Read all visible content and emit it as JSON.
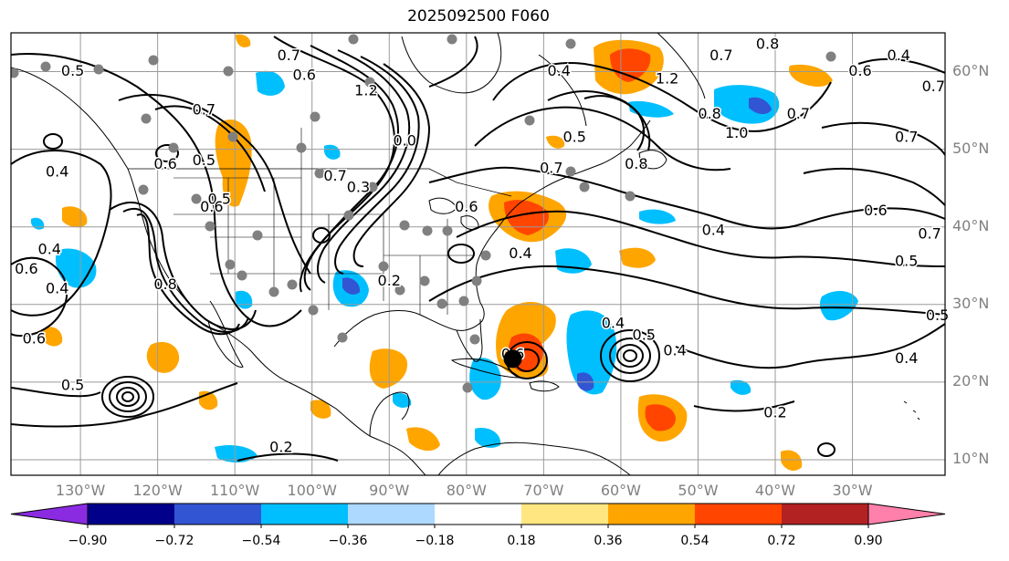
{
  "title": "2025092500 F060",
  "map": {
    "lon_min": -139,
    "lon_max": -18,
    "lat_min": 8,
    "lat_max": 65,
    "lat_labels": [
      {
        "lat": 60,
        "text": "60°N"
      },
      {
        "lat": 50,
        "text": "50°N"
      },
      {
        "lat": 40,
        "text": "40°N"
      },
      {
        "lat": 30,
        "text": "30°N"
      },
      {
        "lat": 20,
        "text": "20°N"
      },
      {
        "lat": 10,
        "text": "10°N"
      }
    ],
    "lon_labels": [
      {
        "lon": -130,
        "text": "130°W"
      },
      {
        "lon": -120,
        "text": "120°W"
      },
      {
        "lon": -110,
        "text": "110°W"
      },
      {
        "lon": -100,
        "text": "100°W"
      },
      {
        "lon": -90,
        "text": "90°W"
      },
      {
        "lon": -80,
        "text": "80°W"
      },
      {
        "lon": -70,
        "text": "70°W"
      },
      {
        "lon": -60,
        "text": "60°W"
      },
      {
        "lon": -50,
        "text": "50°W"
      },
      {
        "lon": -40,
        "text": "40°W"
      },
      {
        "lon": -30,
        "text": "30°W"
      }
    ],
    "contour_labels": [
      {
        "lon": -131,
        "lat": 60,
        "text": "0.5"
      },
      {
        "lon": -103,
        "lat": 62,
        "text": "0.7"
      },
      {
        "lon": -101,
        "lat": 59.5,
        "text": "0.6"
      },
      {
        "lon": -133,
        "lat": 47,
        "text": "0.4"
      },
      {
        "lon": -119,
        "lat": 48,
        "text": "0.6"
      },
      {
        "lon": -114,
        "lat": 48.5,
        "text": "0.5"
      },
      {
        "lon": -112,
        "lat": 43.5,
        "text": "0.5"
      },
      {
        "lon": -134,
        "lat": 37,
        "text": "0.4"
      },
      {
        "lon": -137,
        "lat": 34.5,
        "text": "0.6"
      },
      {
        "lon": -133,
        "lat": 32,
        "text": "0.4"
      },
      {
        "lon": -136,
        "lat": 25.5,
        "text": "0.6"
      },
      {
        "lon": -131,
        "lat": 19.5,
        "text": "0.5"
      },
      {
        "lon": -114,
        "lat": 55,
        "text": "0.7"
      },
      {
        "lon": -93,
        "lat": 57.5,
        "text": "1.2"
      },
      {
        "lon": -88,
        "lat": 51,
        "text": "0.0"
      },
      {
        "lon": -97,
        "lat": 46.5,
        "text": "0.7"
      },
      {
        "lon": -94,
        "lat": 45,
        "text": "0.3"
      },
      {
        "lon": -80,
        "lat": 42.5,
        "text": "0.6"
      },
      {
        "lon": -90,
        "lat": 33,
        "text": "0.2"
      },
      {
        "lon": -73,
        "lat": 36.5,
        "text": "0.4"
      },
      {
        "lon": -68,
        "lat": 60,
        "text": "0.4"
      },
      {
        "lon": -54,
        "lat": 59,
        "text": "1.2"
      },
      {
        "lon": -66,
        "lat": 51.5,
        "text": "0.5"
      },
      {
        "lon": -69,
        "lat": 47.5,
        "text": "0.7"
      },
      {
        "lon": -58,
        "lat": 48,
        "text": "0.8"
      },
      {
        "lon": -48.5,
        "lat": 54.5,
        "text": "0.8"
      },
      {
        "lon": -45,
        "lat": 52,
        "text": "1.0"
      },
      {
        "lon": -47,
        "lat": 62,
        "text": "0.7"
      },
      {
        "lon": -41,
        "lat": 63.5,
        "text": "0.8"
      },
      {
        "lon": -37,
        "lat": 54.5,
        "text": "0.7"
      },
      {
        "lon": -24,
        "lat": 62,
        "text": "0.4"
      },
      {
        "lon": -29,
        "lat": 60,
        "text": "0.6"
      },
      {
        "lon": -19.5,
        "lat": 58,
        "text": "0.7"
      },
      {
        "lon": -23,
        "lat": 51.5,
        "text": "0.7"
      },
      {
        "lon": -48,
        "lat": 39.5,
        "text": "0.4"
      },
      {
        "lon": -27,
        "lat": 42,
        "text": "0.6"
      },
      {
        "lon": -20,
        "lat": 39,
        "text": "0.7"
      },
      {
        "lon": -23,
        "lat": 35.5,
        "text": "0.5"
      },
      {
        "lon": -19,
        "lat": 28.5,
        "text": "0.5"
      },
      {
        "lon": -23,
        "lat": 23,
        "text": "0.4"
      },
      {
        "lon": -61,
        "lat": 27.5,
        "text": "0.4"
      },
      {
        "lon": -57,
        "lat": 26,
        "text": "0.5"
      },
      {
        "lon": -53,
        "lat": 24,
        "text": "0.4"
      },
      {
        "lon": -74,
        "lat": 23.5,
        "text": "0.6"
      },
      {
        "lon": -40,
        "lat": 16,
        "text": "0.2"
      },
      {
        "lon": -104,
        "lat": 11.5,
        "text": "0.2"
      },
      {
        "lon": -119,
        "lat": 32.5,
        "text": "0.8"
      },
      {
        "lon": -113,
        "lat": 42.5,
        "text": "0.6"
      }
    ],
    "hurricane_center": {
      "lon": -74,
      "lat": 23
    }
  },
  "colorbar": {
    "colors": [
      "#8a2be2",
      "#00008b",
      "#3255d3",
      "#00bfff",
      "#add8ff",
      "#ffffff",
      "#ffe680",
      "#ffa500",
      "#ff4500",
      "#b22222",
      "#ff80aa"
    ],
    "tick_labels": [
      "−0.90",
      "−0.72",
      "−0.54",
      "−0.36",
      "−0.18",
      "0.18",
      "0.36",
      "0.54",
      "0.72",
      "0.90"
    ]
  }
}
